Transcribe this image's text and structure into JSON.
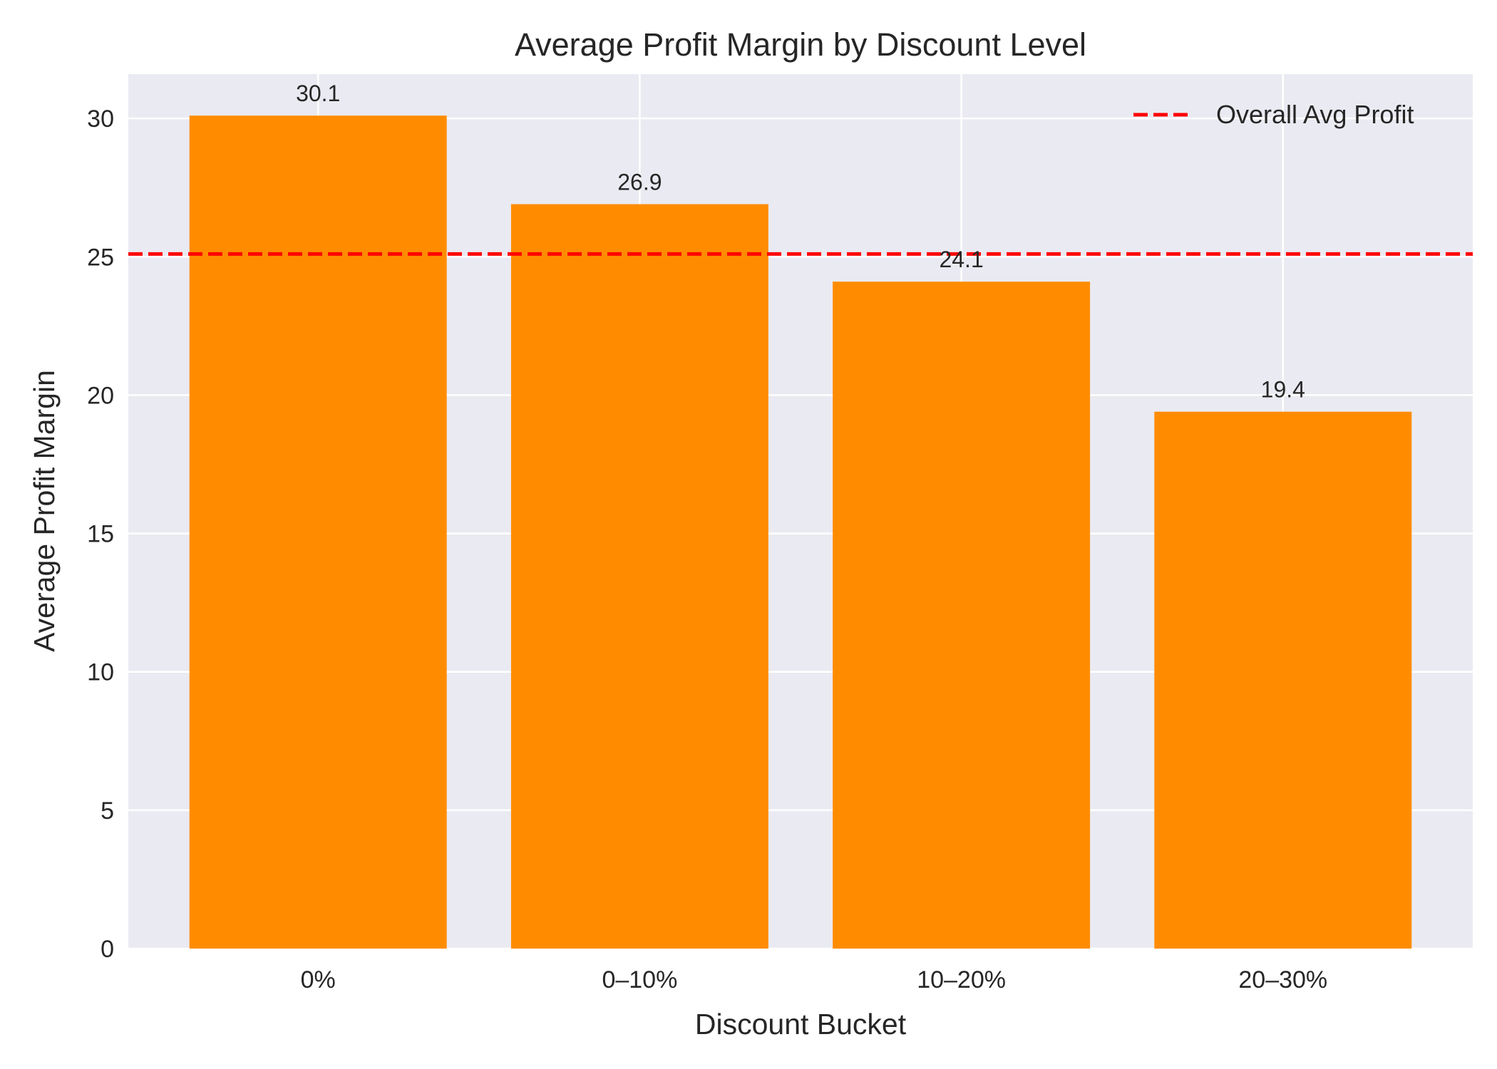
{
  "chart_data": {
    "type": "bar",
    "title": "Average Profit Margin by Discount Level",
    "xlabel": "Discount Bucket",
    "ylabel": "Average Profit Margin",
    "categories": [
      "0%",
      "0–10%",
      "10–20%",
      "20–30%"
    ],
    "values": [
      30.1,
      26.9,
      24.1,
      19.4
    ],
    "value_labels": [
      "30.1",
      "26.9",
      "24.1",
      "19.4"
    ],
    "ylim": [
      0,
      31.6
    ],
    "yticks": [
      0,
      5,
      10,
      15,
      20,
      25,
      30
    ],
    "grid": true,
    "bar_color": "#ff8c00",
    "background_color": "#eaeaf2",
    "reference_line": {
      "label": "Overall Avg Profit",
      "value": 25.1,
      "color": "#ff0000",
      "style": "dashed"
    },
    "legend_position": "top-right"
  }
}
